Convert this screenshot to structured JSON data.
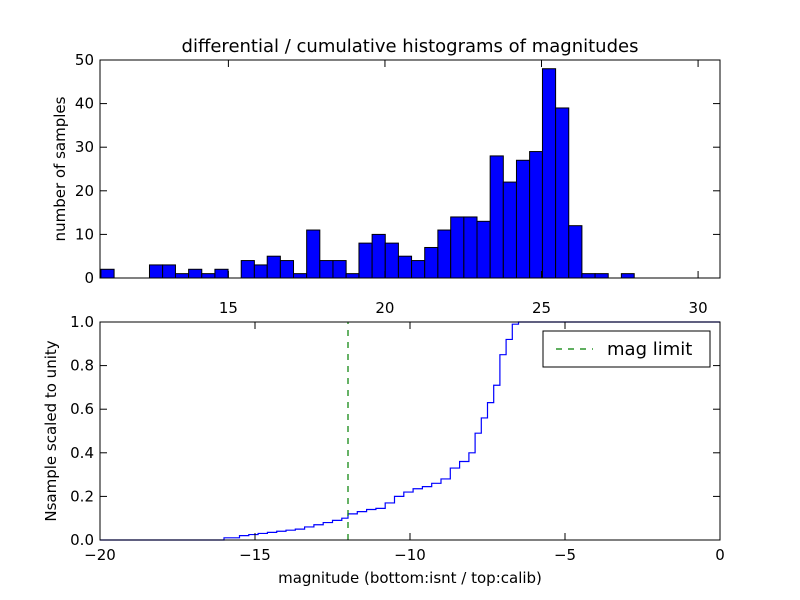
{
  "figure": {
    "background": "#ffffff"
  },
  "chart_data": [
    {
      "type": "bar",
      "title": "differential / cumulative histograms of magnitudes",
      "xlabel": "",
      "ylabel": "number of samples",
      "xlim": [
        10.9,
        30.7
      ],
      "ylim": [
        0,
        50
      ],
      "xticks": [
        15,
        20,
        25,
        30
      ],
      "yticks": [
        0,
        10,
        20,
        30,
        40,
        50
      ],
      "bar_color": "#0000ff",
      "edge_color": "#000000",
      "bins": [
        {
          "x0": 10.93,
          "x1": 11.35,
          "value": 2
        },
        {
          "x0": 12.48,
          "x1": 12.9,
          "value": 3
        },
        {
          "x0": 12.9,
          "x1": 13.31,
          "value": 3
        },
        {
          "x0": 13.31,
          "x1": 13.73,
          "value": 1
        },
        {
          "x0": 13.73,
          "x1": 14.15,
          "value": 2
        },
        {
          "x0": 14.15,
          "x1": 14.57,
          "value": 1
        },
        {
          "x0": 14.57,
          "x1": 14.99,
          "value": 2
        },
        {
          "x0": 15.41,
          "x1": 15.83,
          "value": 4
        },
        {
          "x0": 15.83,
          "x1": 16.24,
          "value": 3
        },
        {
          "x0": 16.24,
          "x1": 16.66,
          "value": 5
        },
        {
          "x0": 16.66,
          "x1": 17.08,
          "value": 4
        },
        {
          "x0": 17.08,
          "x1": 17.5,
          "value": 1
        },
        {
          "x0": 17.5,
          "x1": 17.92,
          "value": 11
        },
        {
          "x0": 17.92,
          "x1": 18.34,
          "value": 4
        },
        {
          "x0": 18.34,
          "x1": 18.76,
          "value": 4
        },
        {
          "x0": 18.76,
          "x1": 19.17,
          "value": 1
        },
        {
          "x0": 19.17,
          "x1": 19.59,
          "value": 8
        },
        {
          "x0": 19.59,
          "x1": 20.01,
          "value": 10
        },
        {
          "x0": 20.01,
          "x1": 20.43,
          "value": 8
        },
        {
          "x0": 20.43,
          "x1": 20.85,
          "value": 5
        },
        {
          "x0": 20.85,
          "x1": 21.27,
          "value": 4
        },
        {
          "x0": 21.27,
          "x1": 21.69,
          "value": 7
        },
        {
          "x0": 21.69,
          "x1": 22.1,
          "value": 11
        },
        {
          "x0": 22.1,
          "x1": 22.52,
          "value": 14
        },
        {
          "x0": 22.52,
          "x1": 22.94,
          "value": 14
        },
        {
          "x0": 22.94,
          "x1": 23.36,
          "value": 13
        },
        {
          "x0": 23.36,
          "x1": 23.78,
          "value": 28
        },
        {
          "x0": 23.78,
          "x1": 24.2,
          "value": 22
        },
        {
          "x0": 24.2,
          "x1": 24.62,
          "value": 27
        },
        {
          "x0": 24.62,
          "x1": 25.03,
          "value": 29
        },
        {
          "x0": 25.03,
          "x1": 25.45,
          "value": 48
        },
        {
          "x0": 25.45,
          "x1": 25.87,
          "value": 39
        },
        {
          "x0": 25.87,
          "x1": 26.29,
          "value": 12
        },
        {
          "x0": 26.29,
          "x1": 26.71,
          "value": 1
        },
        {
          "x0": 26.71,
          "x1": 27.13,
          "value": 1
        },
        {
          "x0": 27.55,
          "x1": 27.96,
          "value": 1
        }
      ]
    },
    {
      "type": "line",
      "subtype": "step",
      "title": "",
      "xlabel": "magnitude (bottom:isnt / top:calib)",
      "ylabel": "Nsample scaled to unity",
      "xlim": [
        -20,
        0
      ],
      "ylim": [
        0,
        1.0
      ],
      "xticks": [
        -20,
        -15,
        -10,
        -5,
        0
      ],
      "xtick_labels": [
        "−20",
        "−15",
        "−10",
        "−5",
        "0"
      ],
      "yticks": [
        0.0,
        0.2,
        0.4,
        0.6,
        0.8,
        1.0
      ],
      "ytick_labels": [
        "0.0",
        "0.2",
        "0.4",
        "0.6",
        "0.8",
        "1.0"
      ],
      "series": [
        {
          "color": "#0000ff",
          "x": [
            -20,
            -16.0,
            -15.5,
            -15.2,
            -14.9,
            -14.6,
            -14.3,
            -14.0,
            -13.7,
            -13.4,
            -13.1,
            -12.8,
            -12.5,
            -12.2,
            -12.0,
            -11.7,
            -11.4,
            -11.1,
            -10.8,
            -10.5,
            -10.2,
            -9.9,
            -9.6,
            -9.3,
            -9.0,
            -8.7,
            -8.4,
            -8.1,
            -7.9,
            -7.7,
            -7.5,
            -7.3,
            -7.1,
            -6.9,
            -6.7,
            -6.5,
            -6.3,
            0
          ],
          "y": [
            0.0,
            0.01,
            0.02,
            0.025,
            0.03,
            0.035,
            0.04,
            0.045,
            0.05,
            0.06,
            0.07,
            0.08,
            0.09,
            0.1,
            0.12,
            0.13,
            0.14,
            0.145,
            0.17,
            0.2,
            0.22,
            0.235,
            0.245,
            0.26,
            0.28,
            0.33,
            0.36,
            0.4,
            0.49,
            0.56,
            0.63,
            0.71,
            0.85,
            0.92,
            0.99,
            1.0,
            1.0,
            1.0
          ]
        },
        {
          "name": "mag limit",
          "color": "#007f00",
          "style": "dashed",
          "x": [
            -12.0,
            -12.0
          ],
          "y": [
            0.0,
            1.0
          ]
        }
      ],
      "legend": {
        "position": "top-right",
        "entries": [
          "mag limit"
        ]
      }
    }
  ]
}
